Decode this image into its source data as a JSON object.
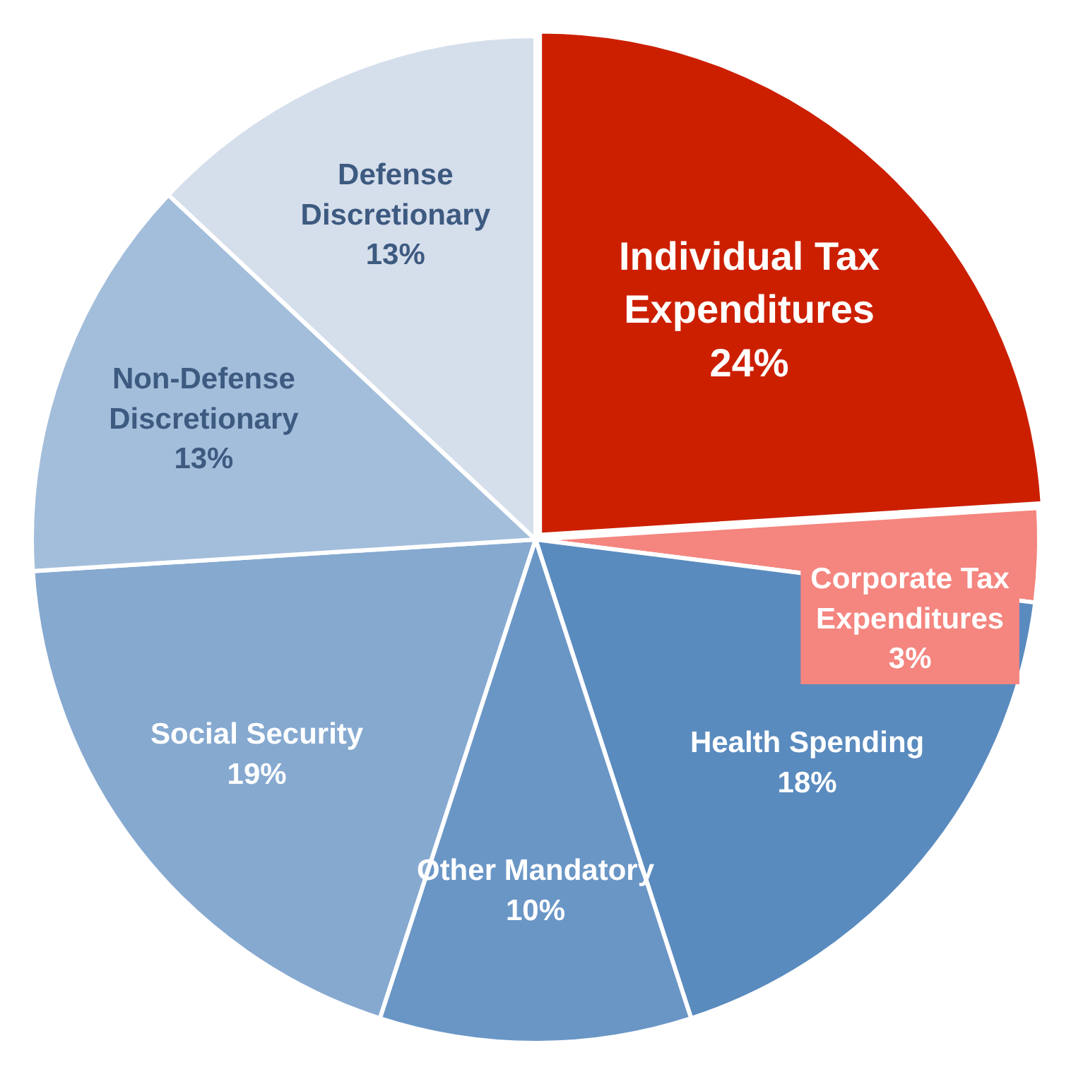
{
  "chart_data": {
    "type": "pie",
    "categories": [
      "Individual Tax Expenditures",
      "Corporate Tax Expenditures",
      "Health Spending",
      "Other Mandatory",
      "Social Security",
      "Non-Defense Discretionary",
      "Defense Discretionary"
    ],
    "values": [
      24,
      3,
      18,
      10,
      19,
      13,
      13
    ],
    "value_labels": [
      "24%",
      "3%",
      "18%",
      "10%",
      "19%",
      "13%",
      "13%"
    ],
    "colors": [
      "#cc1f00",
      "#f4857f",
      "#5a8bbf",
      "#6a96c6",
      "#86a9d0",
      "#a3bedb",
      "#d5deeb"
    ],
    "legend": false
  }
}
